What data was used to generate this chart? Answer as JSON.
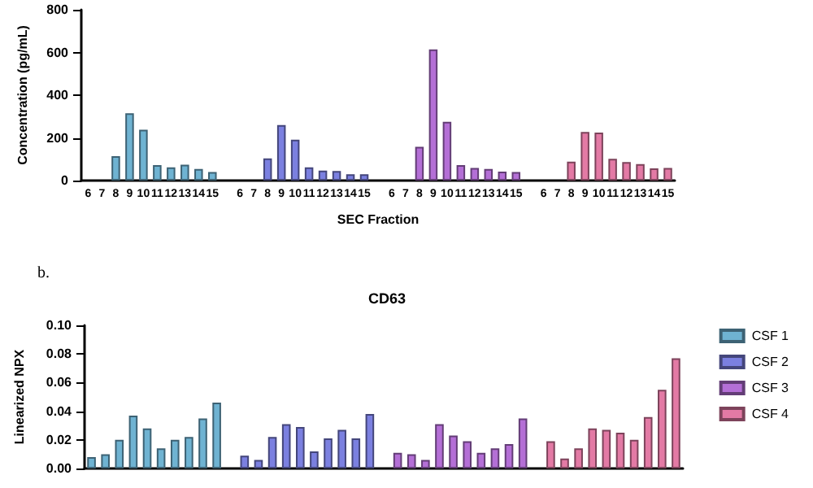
{
  "chart_data": [
    {
      "type": "bar",
      "xlabel": "SEC Fraction",
      "ylabel": "Concentration (pg/mL)",
      "categories": [
        "6",
        "7",
        "8",
        "9",
        "10",
        "11",
        "12",
        "13",
        "14",
        "15",
        null,
        "6",
        "7",
        "8",
        "9",
        "10",
        "11",
        "12",
        "13",
        "14",
        "15",
        null,
        "6",
        "7",
        "8",
        "9",
        "10",
        "11",
        "12",
        "13",
        "14",
        "15",
        null,
        "6",
        "7",
        "8",
        "9",
        "10",
        "11",
        "12",
        "13",
        "14",
        "15"
      ],
      "ylim": [
        0,
        800
      ],
      "yticks": [
        0,
        200,
        400,
        600,
        800
      ],
      "grid": false,
      "legend": false,
      "series": [
        {
          "color": "#6fb3d2",
          "values": [
            null,
            null,
            114,
            315,
            238,
            72,
            62,
            74,
            54,
            40,
            null,
            null,
            null,
            null,
            null,
            null,
            null,
            null,
            null,
            null,
            null,
            null,
            null,
            null,
            null,
            null,
            null,
            null,
            null,
            null,
            null,
            null,
            null,
            null,
            null,
            null,
            null,
            null,
            null,
            null,
            null,
            null,
            null
          ]
        },
        {
          "color": "#7b80e0",
          "values": [
            null,
            null,
            null,
            null,
            null,
            null,
            null,
            null,
            null,
            null,
            null,
            null,
            null,
            104,
            260,
            191,
            62,
            47,
            45,
            30,
            30,
            null,
            null,
            null,
            null,
            null,
            null,
            null,
            null,
            null,
            null,
            null,
            null,
            null,
            null,
            null,
            null,
            null,
            null,
            null,
            null,
            null,
            null
          ]
        },
        {
          "color": "#b46fd6",
          "values": [
            null,
            null,
            null,
            null,
            null,
            null,
            null,
            null,
            null,
            null,
            null,
            null,
            null,
            null,
            null,
            null,
            null,
            null,
            null,
            null,
            null,
            null,
            null,
            null,
            158,
            614,
            275,
            72,
            59,
            54,
            42,
            40,
            null,
            null,
            null,
            null,
            null,
            null,
            null,
            null,
            null,
            null,
            null
          ]
        },
        {
          "color": "#e37aa5",
          "values": [
            null,
            null,
            null,
            null,
            null,
            null,
            null,
            null,
            null,
            null,
            null,
            null,
            null,
            null,
            null,
            null,
            null,
            null,
            null,
            null,
            null,
            null,
            null,
            null,
            null,
            null,
            null,
            null,
            null,
            null,
            null,
            null,
            null,
            null,
            null,
            89,
            228,
            225,
            102,
            87,
            77,
            57,
            59
          ]
        }
      ]
    },
    {
      "type": "bar",
      "title": "CD63",
      "ylabel": "Linearized NPX",
      "annotations": [
        "b."
      ],
      "categories": [
        null,
        null,
        null,
        null,
        null,
        null,
        null,
        null,
        null,
        null,
        null,
        null,
        null,
        null,
        null,
        null,
        null,
        null,
        null,
        null,
        null,
        null,
        null,
        null,
        null,
        null,
        null,
        null,
        null,
        null,
        null,
        null,
        null,
        null,
        null,
        null,
        null,
        null,
        null,
        null,
        null,
        null,
        null
      ],
      "ylim": [
        0,
        0.1
      ],
      "yticks": [
        {
          "value": 0,
          "label": "0.00"
        },
        {
          "value": 0.02,
          "label": "0.02"
        },
        {
          "value": 0.04,
          "label": "0.04"
        },
        {
          "value": 0.06,
          "label": "0.06"
        },
        {
          "value": 0.08,
          "label": "0.08"
        },
        {
          "value": 0.1,
          "label": "0.10"
        }
      ],
      "tick_labels": "y",
      "grid": false,
      "legend": "right",
      "series": [
        {
          "name": "CSF 1",
          "color": "#6fb3d2",
          "values": [
            0.008,
            0.01,
            0.02,
            0.037,
            0.028,
            0.014,
            0.02,
            0.022,
            0.035,
            0.046,
            null,
            null,
            null,
            null,
            null,
            null,
            null,
            null,
            null,
            null,
            null,
            null,
            null,
            null,
            null,
            null,
            null,
            null,
            null,
            null,
            null,
            null,
            null,
            null,
            null,
            null,
            null,
            null,
            null,
            null,
            null,
            null,
            null
          ]
        },
        {
          "name": "CSF 2",
          "color": "#7b80e0",
          "values": [
            null,
            null,
            null,
            null,
            null,
            null,
            null,
            null,
            null,
            null,
            null,
            0.009,
            0.006,
            0.022,
            0.031,
            0.029,
            0.012,
            0.021,
            0.027,
            0.021,
            0.038,
            null,
            null,
            null,
            null,
            null,
            null,
            null,
            null,
            null,
            null,
            null,
            null,
            null,
            null,
            null,
            null,
            null,
            null,
            null,
            null,
            null,
            null
          ]
        },
        {
          "name": "CSF 3",
          "color": "#b46fd6",
          "values": [
            null,
            null,
            null,
            null,
            null,
            null,
            null,
            null,
            null,
            null,
            null,
            null,
            null,
            null,
            null,
            null,
            null,
            null,
            null,
            null,
            null,
            null,
            0.011,
            0.01,
            0.006,
            0.031,
            0.023,
            0.019,
            0.011,
            0.014,
            0.017,
            0.035,
            null,
            null,
            null,
            null,
            null,
            null,
            null,
            null,
            null,
            null,
            null
          ]
        },
        {
          "name": "CSF 4",
          "color": "#e37aa5",
          "values": [
            null,
            null,
            null,
            null,
            null,
            null,
            null,
            null,
            null,
            null,
            null,
            null,
            null,
            null,
            null,
            null,
            null,
            null,
            null,
            null,
            null,
            null,
            null,
            null,
            null,
            null,
            null,
            null,
            null,
            null,
            null,
            null,
            null,
            0.019,
            0.007,
            0.014,
            0.028,
            0.027,
            0.025,
            0.02,
            0.036,
            0.055,
            0.077
          ]
        }
      ]
    }
  ]
}
